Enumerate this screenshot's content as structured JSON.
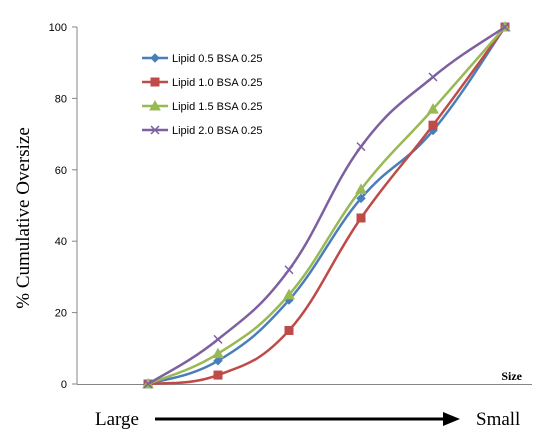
{
  "chart_data": {
    "type": "line",
    "x": [
      1,
      2,
      3,
      4,
      5,
      6
    ],
    "xlabel": "Size",
    "ylabel": "% Cumulative Oversize",
    "ylim": [
      0,
      100
    ],
    "yticks": [
      "0",
      "20",
      "40",
      "60",
      "80",
      "100"
    ],
    "grid": false,
    "legend_position": "top-left",
    "series": [
      {
        "name": "Lipid 0.5 BSA 0.25",
        "color": "#4a7ebb",
        "marker": "diamond",
        "values": [
          0,
          6.5,
          23.5,
          52,
          71,
          100
        ]
      },
      {
        "name": "Lipid 1.0 BSA 0.25",
        "color": "#be4b48",
        "marker": "square",
        "values": [
          0,
          2.5,
          15,
          46.5,
          72.5,
          100
        ]
      },
      {
        "name": "Lipid 1.5 BSA 0.25",
        "color": "#98b954",
        "marker": "triangle",
        "values": [
          0,
          8.5,
          25,
          54.5,
          77,
          100
        ]
      },
      {
        "name": "Lipid 2.0 BSA 0.25",
        "color": "#7d60a0",
        "marker": "x",
        "values": [
          0,
          12.5,
          32,
          66.5,
          86,
          100
        ]
      }
    ]
  },
  "direction": {
    "left_label": "Large",
    "right_label": "Small"
  }
}
